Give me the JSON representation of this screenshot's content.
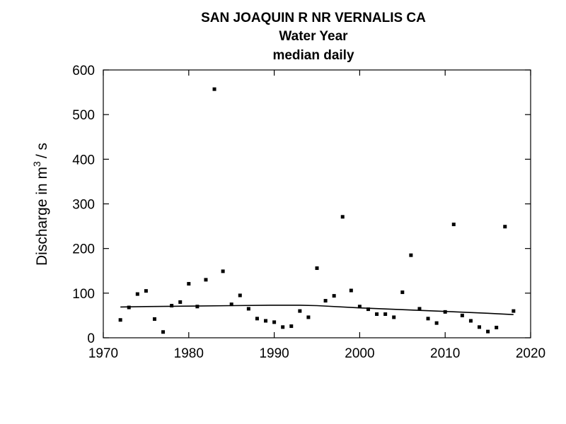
{
  "chart_data": {
    "type": "scatter",
    "title": [
      "SAN JOAQUIN R NR VERNALIS CA",
      "Water Year",
      "median daily"
    ],
    "ylabel": {
      "prefix": "Discharge in m",
      "sup": "3",
      "suffix": "/ s"
    },
    "xlim": [
      1970,
      2020
    ],
    "ylim": [
      0,
      600
    ],
    "xticks": [
      1970,
      1980,
      1990,
      2000,
      2010,
      2020
    ],
    "yticks": [
      0,
      100,
      200,
      300,
      400,
      500,
      600
    ],
    "grid": false,
    "series": [
      {
        "type": "scatter",
        "x": [
          1972,
          1973,
          1974,
          1975,
          1976,
          1977,
          1978,
          1979,
          1980,
          1981,
          1982,
          1983,
          1984,
          1985,
          1986,
          1987,
          1988,
          1989,
          1990,
          1991,
          1992,
          1993,
          1994,
          1995,
          1996,
          1997,
          1998,
          1999,
          2000,
          2001,
          2002,
          2003,
          2004,
          2005,
          2006,
          2007,
          2008,
          2009,
          2010,
          2011,
          2012,
          2013,
          2014,
          2015,
          2016,
          2017,
          2018
        ],
        "y": [
          40,
          68,
          98,
          105,
          42,
          13,
          72,
          80,
          121,
          70,
          130,
          557,
          149,
          75,
          95,
          65,
          43,
          38,
          35,
          24,
          26,
          60,
          46,
          156,
          83,
          94,
          271,
          106,
          70,
          64,
          53,
          53,
          46,
          102,
          185,
          65,
          43,
          33,
          58,
          254,
          50,
          38,
          24,
          14,
          23,
          249,
          60
        ]
      },
      {
        "type": "line",
        "x": [
          1972,
          1975,
          1980,
          1985,
          1990,
          1993,
          1995,
          2000,
          2005,
          2010,
          2015,
          2018
        ],
        "y": [
          69,
          70,
          71,
          72,
          73,
          73,
          72,
          67,
          63,
          59,
          55,
          52
        ]
      }
    ]
  }
}
